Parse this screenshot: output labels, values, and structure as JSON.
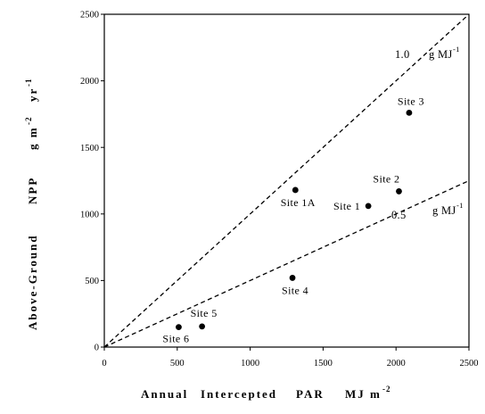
{
  "chart_data": {
    "type": "scatter",
    "xlabel": {
      "words": [
        "Annual",
        "Intercepted",
        "PAR"
      ],
      "unit": "MJ m",
      "unit_exponent": "-2"
    },
    "ylabel": {
      "words": [
        "Above-Ground",
        "NPP"
      ],
      "unit": [
        {
          "base": "g m",
          "exponent": "-2"
        },
        {
          "base": "yr",
          "exponent": "-1"
        }
      ]
    },
    "xlim": [
      0,
      2500
    ],
    "ylim": [
      0,
      2500
    ],
    "xticks": [
      0,
      500,
      1000,
      1500,
      2000,
      2500
    ],
    "yticks": [
      0,
      500,
      1000,
      1500,
      2000,
      2500
    ],
    "grid": false,
    "points": [
      {
        "label": "Site 1A",
        "x": 1310,
        "y": 1180
      },
      {
        "label": "Site 1",
        "x": 1810,
        "y": 1060
      },
      {
        "label": "Site 2",
        "x": 2020,
        "y": 1170
      },
      {
        "label": "Site 3",
        "x": 2090,
        "y": 1760
      },
      {
        "label": "Site 4",
        "x": 1290,
        "y": 520
      },
      {
        "label": "Site 5",
        "x": 670,
        "y": 155
      },
      {
        "label": "Site 6",
        "x": 510,
        "y": 150
      }
    ],
    "reference_lines": [
      {
        "slope": 1.0,
        "intercept": 0,
        "label_value": "1.0",
        "label_unit": "g MJ",
        "label_exponent": "-1"
      },
      {
        "slope": 0.5,
        "intercept": 0,
        "label_value": "0.5",
        "label_unit": "g MJ",
        "label_exponent": "-1"
      }
    ],
    "colors": {
      "points": "#000000",
      "reference_lines": "#000000",
      "axes": "#000000",
      "background": "#ffffff"
    }
  }
}
